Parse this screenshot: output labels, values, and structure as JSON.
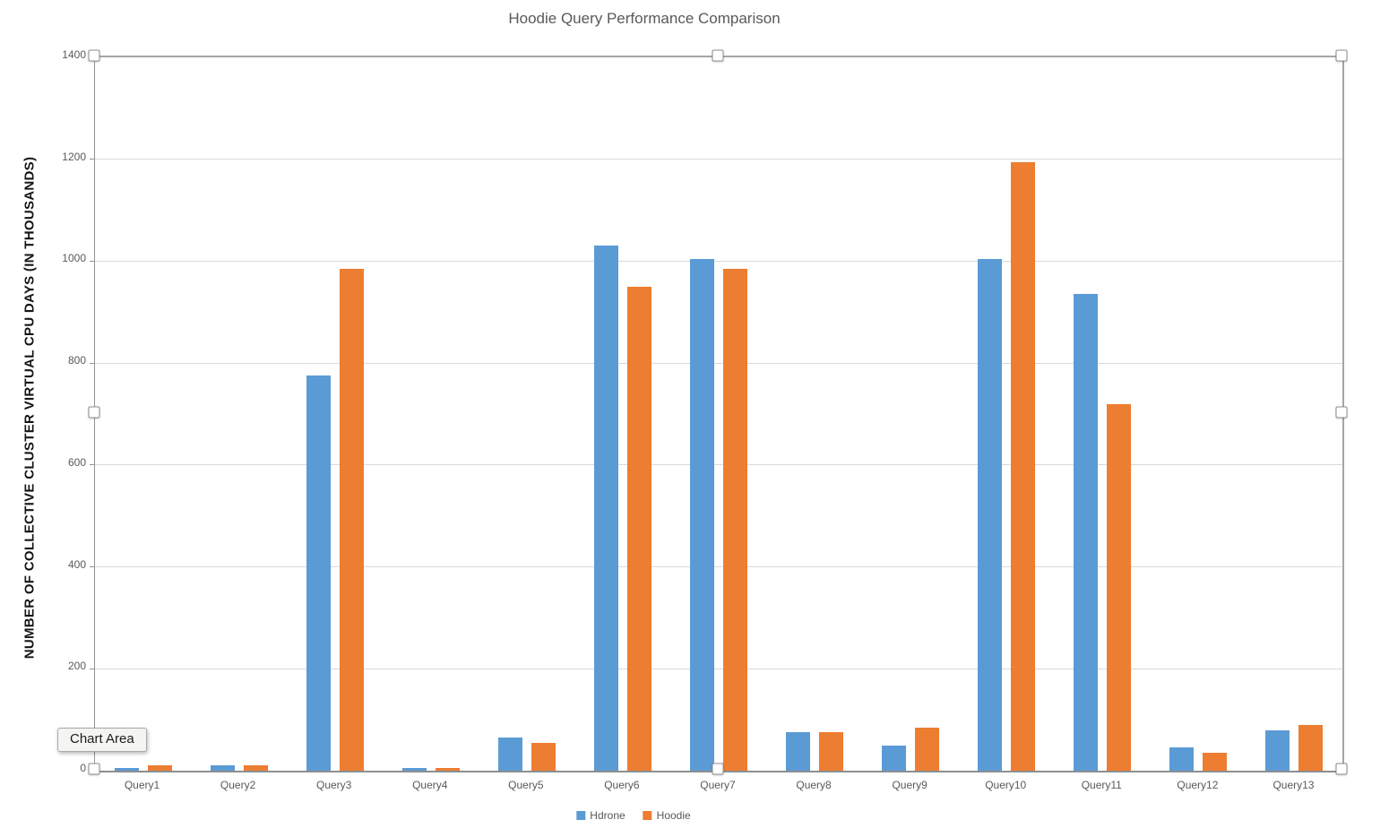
{
  "title": "Hoodie Query Performance Comparison",
  "tooltip": {
    "label": "Chart Area"
  },
  "colors": {
    "hdrone": "#5B9BD5",
    "hoodie": "#ED7D31",
    "gridline": "#D9D9D9",
    "axis_line": "#949494",
    "selection_border": "#A6A6A6",
    "label_text": "#595959"
  },
  "chart_data": {
    "type": "bar",
    "title": "Hoodie Query Performance Comparison",
    "xlabel": "",
    "ylabel": "NUMBER OF COLLECTIVE CLUSTER VIRTUAL CPU DAYS (IN THOUSANDS)",
    "categories": [
      "Query1",
      "Query2",
      "Query3",
      "Query4",
      "Query5",
      "Query6",
      "Query7",
      "Query8",
      "Query9",
      "Query10",
      "Query11",
      "Query12",
      "Query13"
    ],
    "series": [
      {
        "name": "Hdrone",
        "color": "#5B9BD5",
        "values": [
          5,
          10,
          775,
          5,
          65,
          1030,
          1005,
          75,
          50,
          1005,
          935,
          45,
          80
        ]
      },
      {
        "name": "Hoodie",
        "color": "#ED7D31",
        "values": [
          10,
          10,
          985,
          5,
          55,
          950,
          985,
          75,
          85,
          1195,
          720,
          35,
          90
        ]
      }
    ],
    "ylim": [
      0,
      1400
    ],
    "yticks": [
      0,
      200,
      400,
      600,
      800,
      1000,
      1200,
      1400
    ],
    "grid": true,
    "legend_position": "bottom"
  }
}
